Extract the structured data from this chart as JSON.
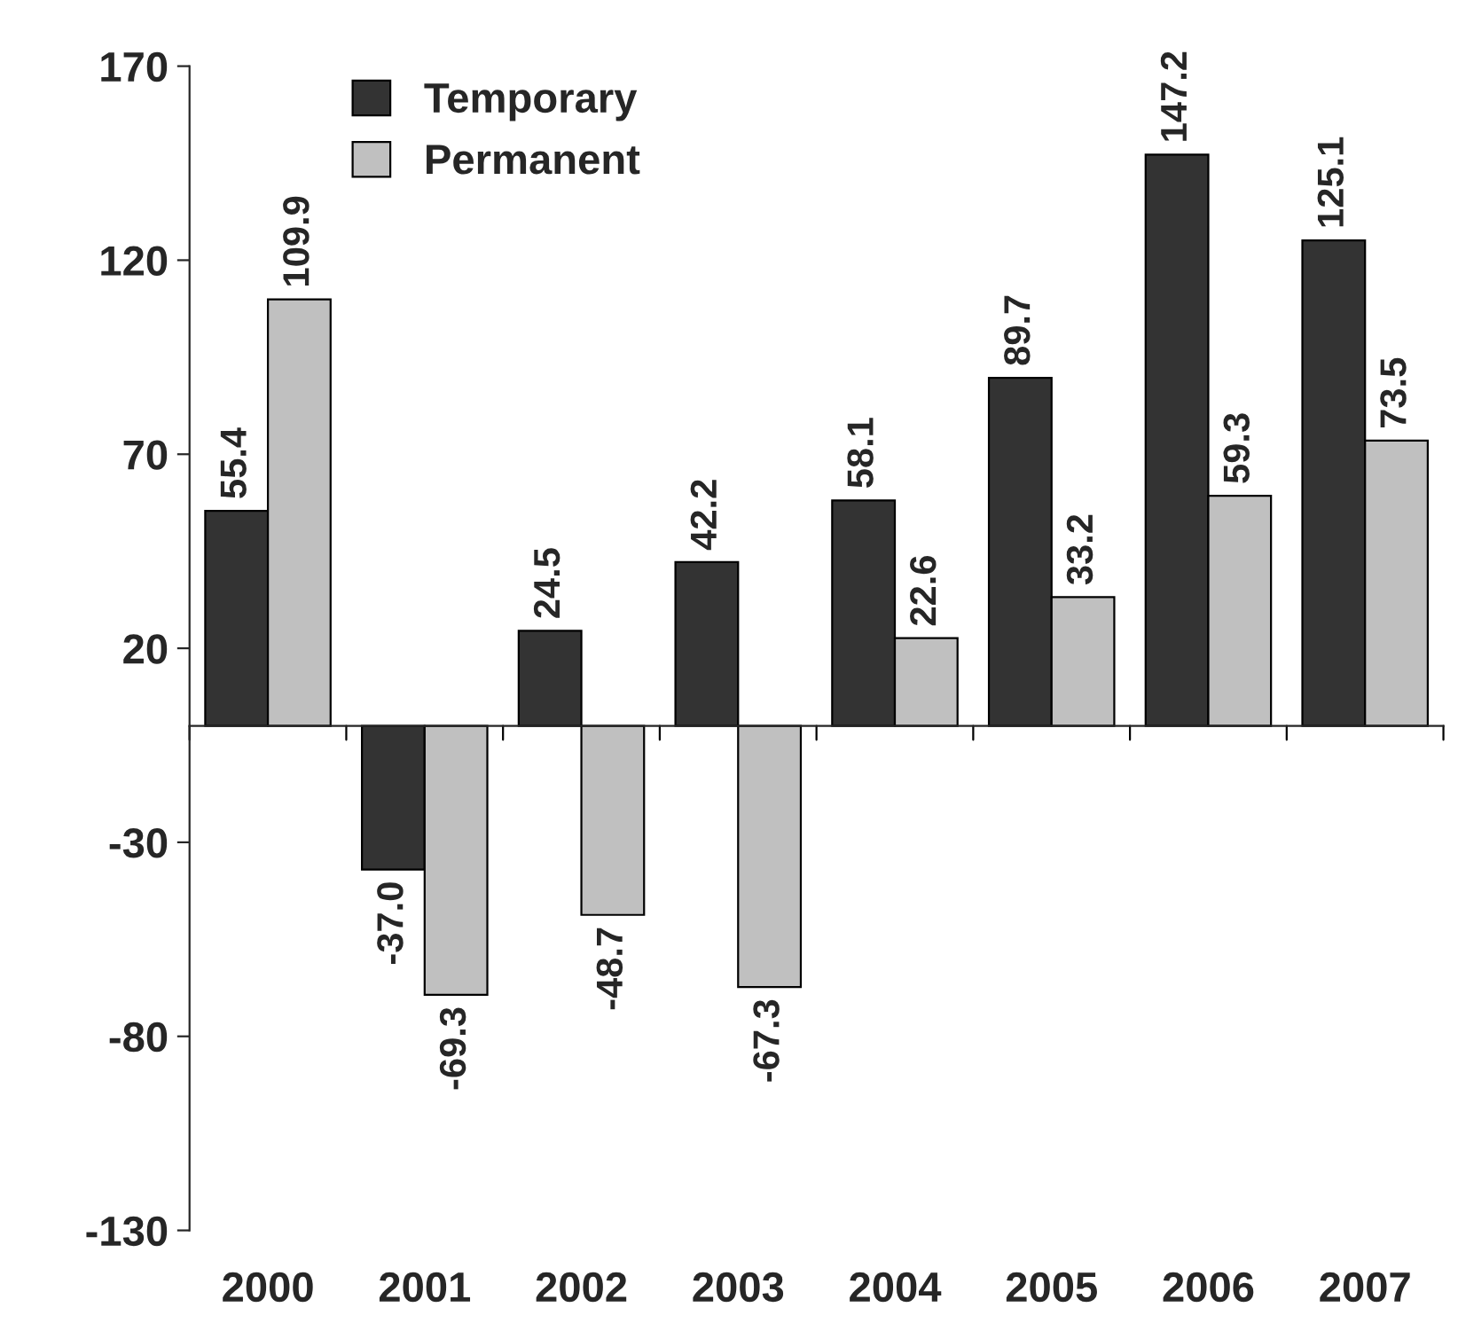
{
  "chart_data": {
    "type": "bar",
    "categories": [
      "2000",
      "2001",
      "2002",
      "2003",
      "2004",
      "2005",
      "2006",
      "2007"
    ],
    "series": [
      {
        "name": "Temporary",
        "color": "#333333",
        "values": [
          55.4,
          -37.0,
          24.5,
          42.2,
          58.1,
          89.7,
          147.2,
          125.1
        ],
        "value_labels": [
          "55.4",
          "-37.0",
          "24.5",
          "42.2",
          "58.1",
          "89.7",
          "147.2",
          "125.1"
        ]
      },
      {
        "name": "Permanent",
        "color": "#c0c0c0",
        "values": [
          109.9,
          -69.3,
          -48.7,
          -67.3,
          22.6,
          33.2,
          59.3,
          73.5
        ],
        "value_labels": [
          "109.9",
          "-69.3",
          "-48.7",
          "-67.3",
          "22.6",
          "33.2",
          "59.3",
          "73.5"
        ]
      }
    ],
    "ylim": [
      -130,
      170
    ],
    "yticks": [
      -130,
      -80,
      -30,
      20,
      70,
      120,
      170
    ],
    "grid": false,
    "legend": "top left"
  }
}
